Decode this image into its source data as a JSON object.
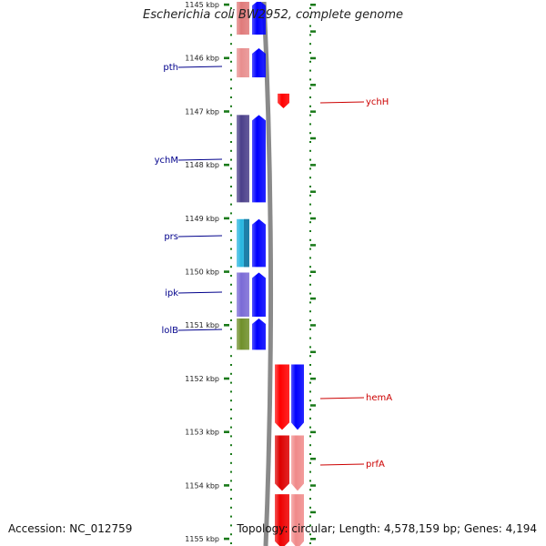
{
  "title": "Escherichia coli BW2952, complete genome",
  "footer": {
    "accession": "Accession: NC_012759",
    "summary": "Topology: circular; Length: 4,578,159 bp; Genes: 4,194"
  },
  "colors": {
    "tick": "#1a7a1a",
    "backbone": "#8a8a8a",
    "forward_label": "#00008b",
    "reverse_label": "#cc0000",
    "forward_arrow": "#0000ff",
    "reverse_arrow": "#ff0000",
    "reverse_arrow_light": "#f08a8a"
  },
  "map": {
    "kbp_ticks": [
      {
        "kbp": 1145,
        "label": "1145 kbp"
      },
      {
        "kbp": 1146,
        "label": "1146 kbp"
      },
      {
        "kbp": 1147,
        "label": "1147 kbp"
      },
      {
        "kbp": 1148,
        "label": "1148 kbp"
      },
      {
        "kbp": 1149,
        "label": "1149 kbp"
      },
      {
        "kbp": 1150,
        "label": "1150 kbp"
      },
      {
        "kbp": 1151,
        "label": "1151 kbp"
      },
      {
        "kbp": 1152,
        "label": "1152 kbp"
      },
      {
        "kbp": 1153,
        "label": "1153 kbp"
      },
      {
        "kbp": 1154,
        "label": "1154 kbp"
      },
      {
        "kbp": 1155,
        "label": "1155 kbp"
      }
    ],
    "forward_genes": [
      {
        "name": "",
        "start_kbp": 1144.9,
        "end_kbp": 1145.58,
        "color": "#e07a7a"
      },
      {
        "name": "pth",
        "start_kbp": 1145.8,
        "end_kbp": 1146.38,
        "color": "#e88e8e"
      },
      {
        "name": "ychM",
        "start_kbp": 1147.05,
        "end_kbp": 1148.72,
        "color": "#4a3f8a"
      },
      {
        "name": "prs",
        "start_kbp": 1149.0,
        "end_kbp": 1149.93,
        "color": "#29b6e0"
      },
      {
        "name": "ipk",
        "start_kbp": 1150.0,
        "end_kbp": 1150.86,
        "color": "#7a6ad6"
      },
      {
        "name": "lolB",
        "start_kbp": 1150.86,
        "end_kbp": 1151.48,
        "color": "#6f8f2a"
      }
    ],
    "reverse_genes": [
      {
        "name": "ychH",
        "start_kbp": 1146.65,
        "end_kbp": 1146.96,
        "color": "#ff0000"
      },
      {
        "name": "hemA",
        "start_kbp": 1151.72,
        "end_kbp": 1152.98,
        "color": "#ff0000"
      },
      {
        "name": "prfA",
        "start_kbp": 1153.05,
        "end_kbp": 1154.12,
        "color": "#dd0000"
      },
      {
        "name": "",
        "start_kbp": 1154.15,
        "end_kbp": 1155.2,
        "color": "#ee0000"
      }
    ]
  }
}
